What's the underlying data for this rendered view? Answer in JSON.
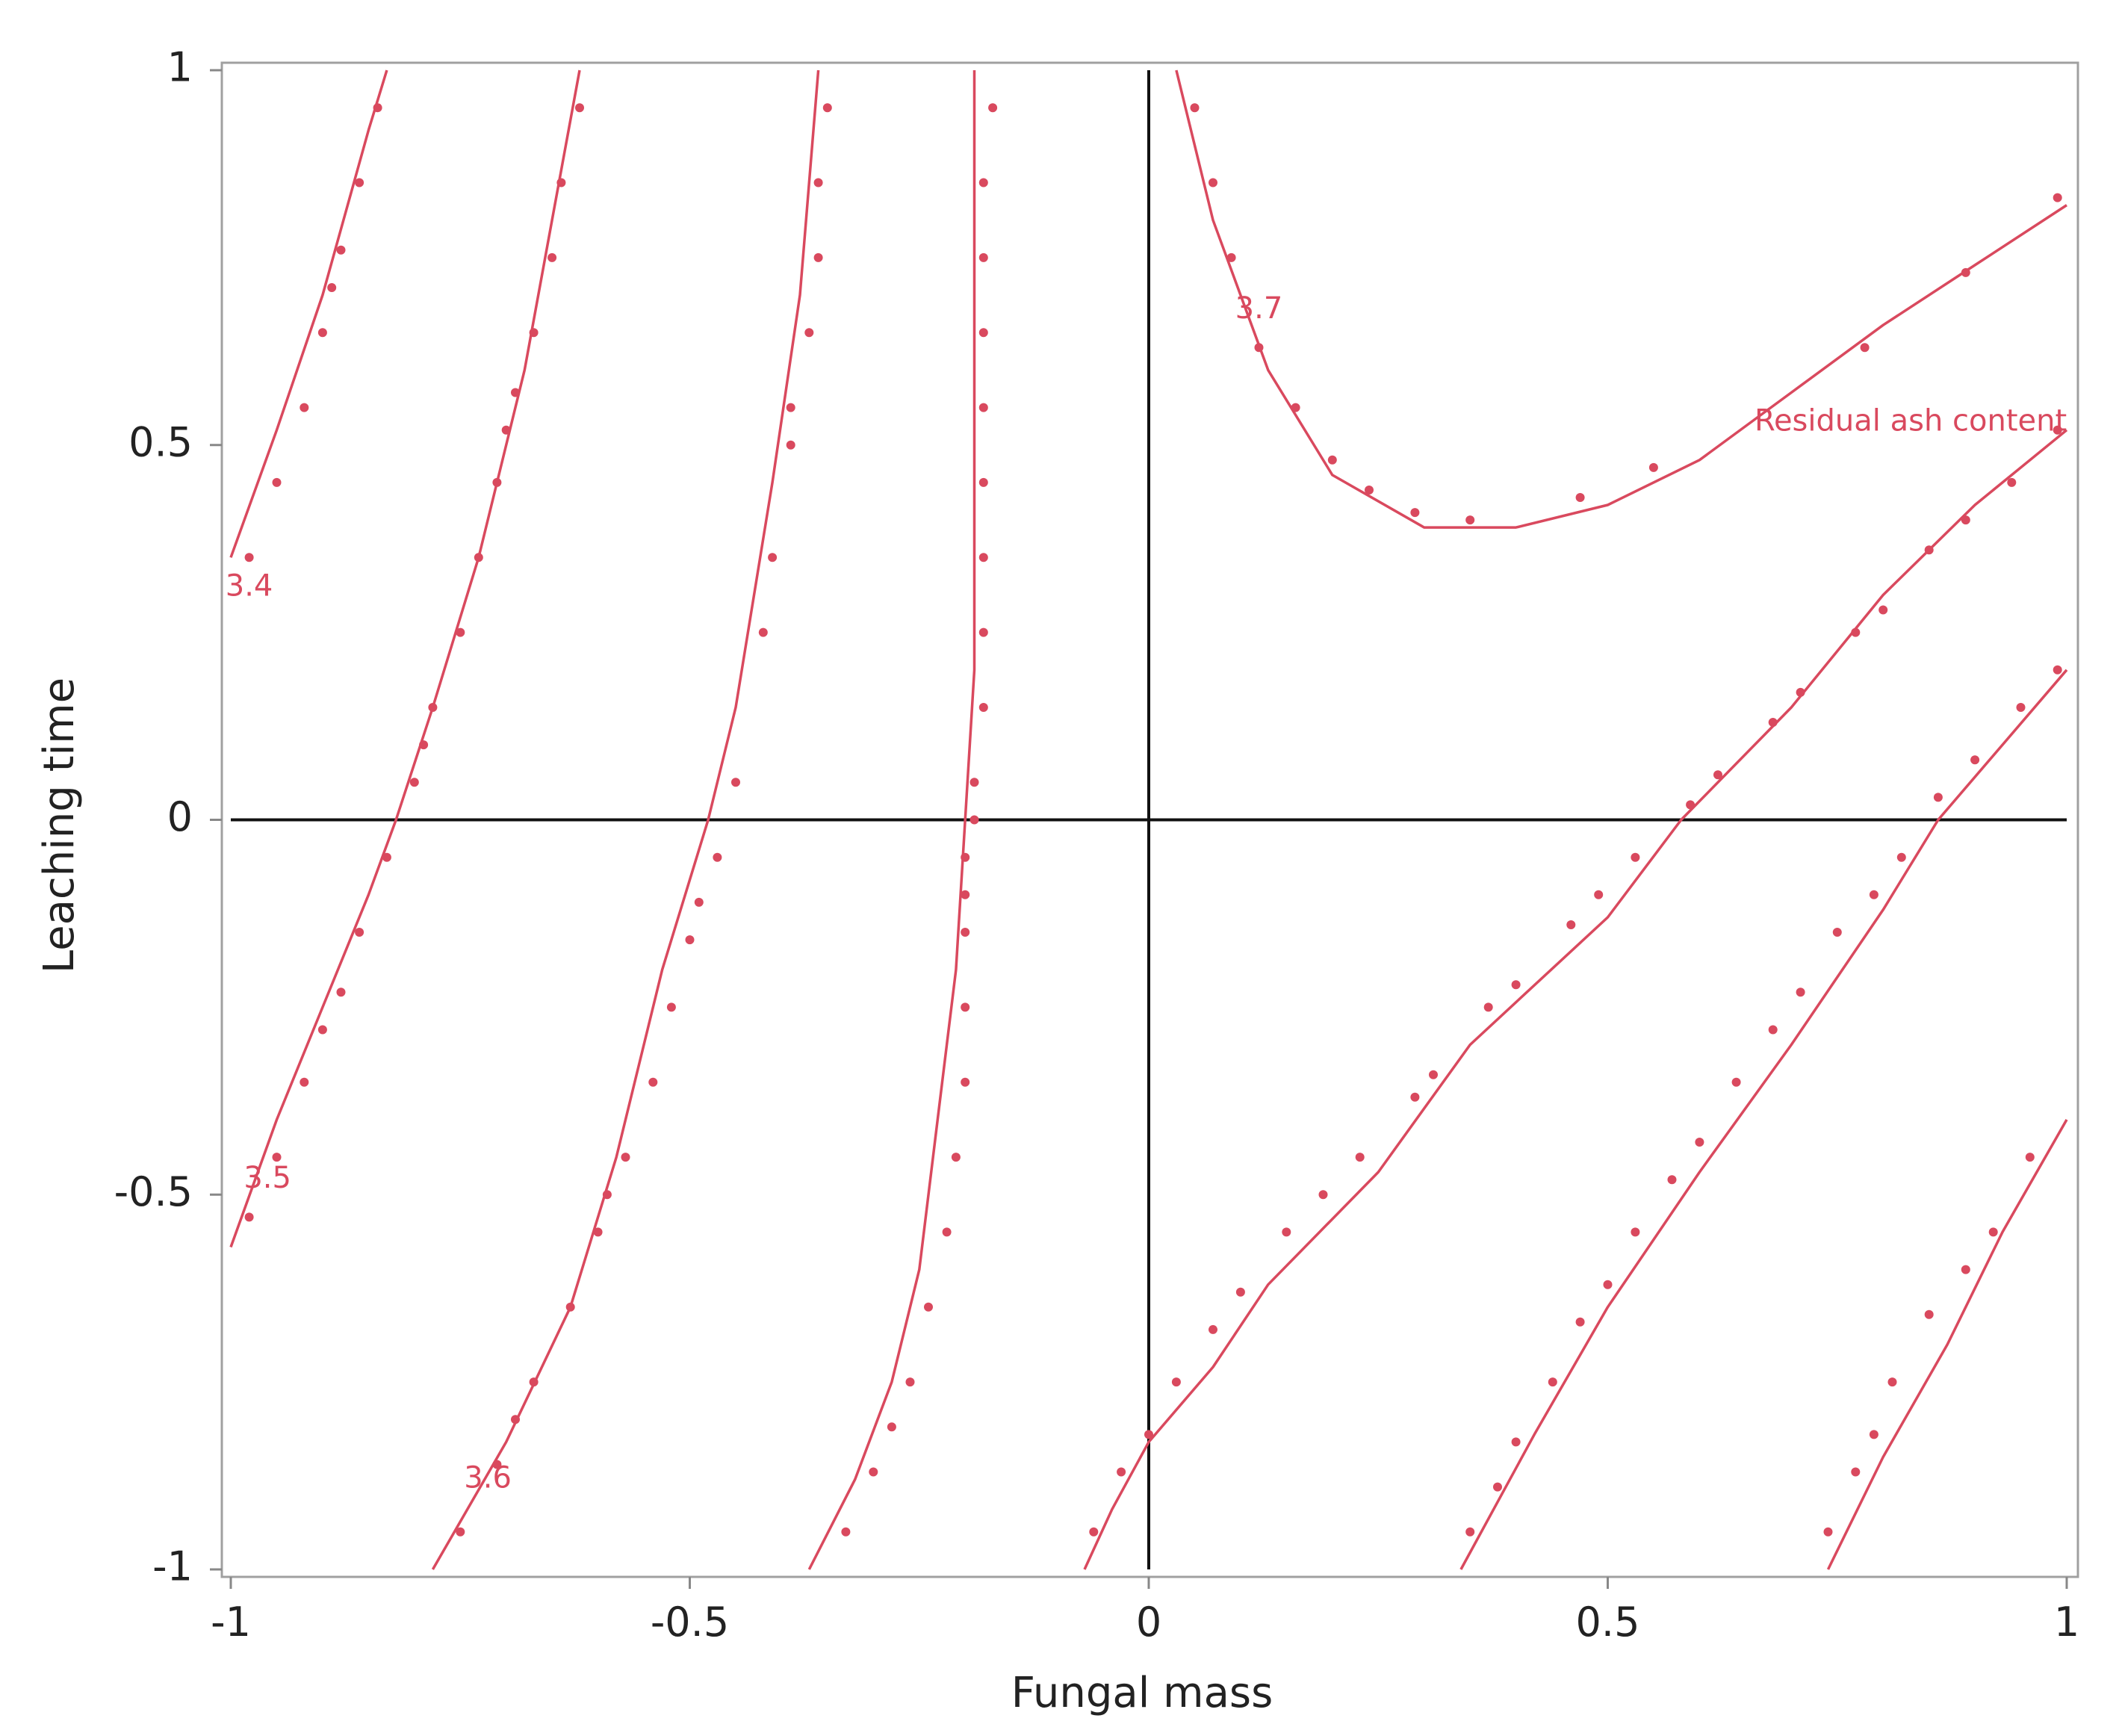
{
  "chart_data": {
    "type": "contour",
    "title": "",
    "xlabel": "Fungal mass",
    "ylabel": "Leaching time",
    "xlim": [
      -1,
      1
    ],
    "ylim": [
      -1,
      1
    ],
    "xticks": [
      "-1",
      "-0.5",
      "0",
      "0.5",
      "1"
    ],
    "yticks": [
      "-1",
      "-0.5",
      "0",
      "0.5",
      "1"
    ],
    "series_label": "Residual ash content",
    "color": "#d9495e",
    "reference_lines": [
      {
        "axis": "x",
        "value": 0
      },
      {
        "axis": "y",
        "value": 0
      }
    ],
    "contour_labels": [
      {
        "text": "3.4",
        "x": -0.98,
        "y": 0.31
      },
      {
        "text": "3.5",
        "x": -0.96,
        "y": -0.48
      },
      {
        "text": "3.6",
        "x": -0.72,
        "y": -0.88
      },
      {
        "text": "3.7",
        "x": 0.12,
        "y": 0.68
      },
      {
        "text": "Residual ash content",
        "x": 0.83,
        "y": 0.53
      }
    ],
    "contours": [
      {
        "line": [
          [
            -1.0,
            0.35
          ],
          [
            -0.95,
            0.52
          ],
          [
            -0.9,
            0.7
          ],
          [
            -0.85,
            0.92
          ],
          [
            -0.83,
            1.0
          ]
        ],
        "points": [
          [
            -0.98,
            0.35
          ],
          [
            -0.95,
            0.45
          ],
          [
            -0.92,
            0.55
          ],
          [
            -0.9,
            0.65
          ],
          [
            -0.89,
            0.71
          ],
          [
            -0.88,
            0.76
          ],
          [
            -0.86,
            0.85
          ],
          [
            -0.84,
            0.95
          ]
        ]
      },
      {
        "line": [
          [
            -1.0,
            -0.57
          ],
          [
            -0.95,
            -0.4
          ],
          [
            -0.9,
            -0.25
          ],
          [
            -0.85,
            -0.1
          ],
          [
            -0.82,
            0.0
          ],
          [
            -0.78,
            0.15
          ],
          [
            -0.73,
            0.35
          ],
          [
            -0.68,
            0.6
          ],
          [
            -0.65,
            0.8
          ],
          [
            -0.62,
            1.0
          ]
        ],
        "points": [
          [
            -0.98,
            -0.53
          ],
          [
            -0.95,
            -0.45
          ],
          [
            -0.92,
            -0.35
          ],
          [
            -0.9,
            -0.28
          ],
          [
            -0.88,
            -0.23
          ],
          [
            -0.86,
            -0.15
          ],
          [
            -0.83,
            -0.05
          ],
          [
            -0.8,
            0.05
          ],
          [
            -0.79,
            0.1
          ],
          [
            -0.78,
            0.15
          ],
          [
            -0.75,
            0.25
          ],
          [
            -0.73,
            0.35
          ],
          [
            -0.71,
            0.45
          ],
          [
            -0.7,
            0.52
          ],
          [
            -0.69,
            0.57
          ],
          [
            -0.67,
            0.65
          ],
          [
            -0.65,
            0.75
          ],
          [
            -0.64,
            0.85
          ],
          [
            -0.62,
            0.95
          ]
        ]
      },
      {
        "line": [
          [
            -0.78,
            -1.0
          ],
          [
            -0.7,
            -0.83
          ],
          [
            -0.63,
            -0.65
          ],
          [
            -0.58,
            -0.45
          ],
          [
            -0.53,
            -0.2
          ],
          [
            -0.48,
            0.0
          ],
          [
            -0.45,
            0.15
          ],
          [
            -0.41,
            0.45
          ],
          [
            -0.38,
            0.7
          ],
          [
            -0.36,
            1.0
          ]
        ],
        "points": [
          [
            -0.75,
            -0.95
          ],
          [
            -0.71,
            -0.86
          ],
          [
            -0.69,
            -0.8
          ],
          [
            -0.67,
            -0.75
          ],
          [
            -0.63,
            -0.65
          ],
          [
            -0.6,
            -0.55
          ],
          [
            -0.59,
            -0.5
          ],
          [
            -0.57,
            -0.45
          ],
          [
            -0.54,
            -0.35
          ],
          [
            -0.52,
            -0.25
          ],
          [
            -0.5,
            -0.16
          ],
          [
            -0.49,
            -0.11
          ],
          [
            -0.47,
            -0.05
          ],
          [
            -0.45,
            0.05
          ],
          [
            -0.42,
            0.25
          ],
          [
            -0.41,
            0.35
          ],
          [
            -0.39,
            0.5
          ],
          [
            -0.39,
            0.55
          ],
          [
            -0.37,
            0.65
          ],
          [
            -0.36,
            0.75
          ],
          [
            -0.36,
            0.85
          ],
          [
            -0.35,
            0.95
          ]
        ]
      },
      {
        "line": [
          [
            -0.37,
            -1.0
          ],
          [
            -0.32,
            -0.88
          ],
          [
            -0.28,
            -0.75
          ],
          [
            -0.25,
            -0.6
          ],
          [
            -0.23,
            -0.4
          ],
          [
            -0.21,
            -0.2
          ],
          [
            -0.2,
            0.0
          ],
          [
            -0.19,
            0.2
          ],
          [
            -0.19,
            0.5
          ],
          [
            -0.19,
            0.8
          ],
          [
            -0.19,
            1.0
          ]
        ],
        "points": [
          [
            -0.33,
            -0.95
          ],
          [
            -0.3,
            -0.87
          ],
          [
            -0.28,
            -0.81
          ],
          [
            -0.26,
            -0.75
          ],
          [
            -0.24,
            -0.65
          ],
          [
            -0.22,
            -0.55
          ],
          [
            -0.21,
            -0.45
          ],
          [
            -0.2,
            -0.35
          ],
          [
            -0.2,
            -0.25
          ],
          [
            -0.2,
            -0.15
          ],
          [
            -0.2,
            -0.1
          ],
          [
            -0.2,
            -0.05
          ],
          [
            -0.19,
            0.0
          ],
          [
            -0.19,
            0.05
          ],
          [
            -0.18,
            0.15
          ],
          [
            -0.18,
            0.25
          ],
          [
            -0.18,
            0.35
          ],
          [
            -0.18,
            0.45
          ],
          [
            -0.18,
            0.55
          ],
          [
            -0.18,
            0.65
          ],
          [
            -0.18,
            0.75
          ],
          [
            -0.18,
            0.85
          ],
          [
            -0.17,
            0.95
          ]
        ]
      },
      {
        "line": [
          [
            0.03,
            1.0
          ],
          [
            0.07,
            0.8
          ],
          [
            0.13,
            0.6
          ],
          [
            0.2,
            0.46
          ],
          [
            0.3,
            0.39
          ],
          [
            0.4,
            0.39
          ],
          [
            0.5,
            0.42
          ],
          [
            0.6,
            0.48
          ],
          [
            0.7,
            0.57
          ],
          [
            0.8,
            0.66
          ],
          [
            0.9,
            0.74
          ],
          [
            1.0,
            0.82
          ]
        ],
        "points": [
          [
            0.05,
            0.95
          ],
          [
            0.07,
            0.85
          ],
          [
            0.09,
            0.75
          ],
          [
            0.12,
            0.63
          ],
          [
            0.16,
            0.55
          ],
          [
            0.2,
            0.48
          ],
          [
            0.24,
            0.44
          ],
          [
            0.29,
            0.41
          ],
          [
            0.35,
            0.4
          ],
          [
            0.47,
            0.43
          ],
          [
            0.55,
            0.47
          ],
          [
            0.78,
            0.63
          ],
          [
            0.89,
            0.73
          ],
          [
            0.99,
            0.83
          ]
        ]
      },
      {
        "line": [
          [
            -0.07,
            -1.0
          ],
          [
            -0.04,
            -0.92
          ],
          [
            0.0,
            -0.83
          ],
          [
            0.07,
            -0.73
          ],
          [
            0.13,
            -0.62
          ],
          [
            0.25,
            -0.47
          ],
          [
            0.35,
            -0.3
          ],
          [
            0.5,
            -0.13
          ],
          [
            0.58,
            0.0
          ],
          [
            0.7,
            0.15
          ],
          [
            0.8,
            0.3
          ],
          [
            0.9,
            0.42
          ],
          [
            1.0,
            0.52
          ]
        ],
        "points": [
          [
            -0.06,
            -0.95
          ],
          [
            -0.03,
            -0.87
          ],
          [
            0.0,
            -0.82
          ],
          [
            0.03,
            -0.75
          ],
          [
            0.07,
            -0.68
          ],
          [
            0.1,
            -0.63
          ],
          [
            0.15,
            -0.55
          ],
          [
            0.19,
            -0.5
          ],
          [
            0.23,
            -0.45
          ],
          [
            0.29,
            -0.37
          ],
          [
            0.31,
            -0.34
          ],
          [
            0.37,
            -0.25
          ],
          [
            0.4,
            -0.22
          ],
          [
            0.46,
            -0.14
          ],
          [
            0.49,
            -0.1
          ],
          [
            0.53,
            -0.05
          ],
          [
            0.59,
            0.02
          ],
          [
            0.62,
            0.06
          ],
          [
            0.68,
            0.13
          ],
          [
            0.71,
            0.17
          ],
          [
            0.77,
            0.25
          ],
          [
            0.8,
            0.28
          ],
          [
            0.85,
            0.36
          ],
          [
            0.89,
            0.4
          ],
          [
            0.94,
            0.45
          ],
          [
            0.99,
            0.52
          ]
        ]
      },
      {
        "line": [
          [
            0.34,
            -1.0
          ],
          [
            0.42,
            -0.82
          ],
          [
            0.5,
            -0.65
          ],
          [
            0.6,
            -0.47
          ],
          [
            0.7,
            -0.3
          ],
          [
            0.8,
            -0.12
          ],
          [
            0.86,
            0.0
          ],
          [
            0.93,
            0.1
          ],
          [
            1.0,
            0.2
          ]
        ],
        "points": [
          [
            0.35,
            -0.95
          ],
          [
            0.38,
            -0.89
          ],
          [
            0.4,
            -0.83
          ],
          [
            0.44,
            -0.75
          ],
          [
            0.47,
            -0.67
          ],
          [
            0.5,
            -0.62
          ],
          [
            0.53,
            -0.55
          ],
          [
            0.57,
            -0.48
          ],
          [
            0.6,
            -0.43
          ],
          [
            0.64,
            -0.35
          ],
          [
            0.68,
            -0.28
          ],
          [
            0.71,
            -0.23
          ],
          [
            0.75,
            -0.15
          ],
          [
            0.79,
            -0.1
          ],
          [
            0.82,
            -0.05
          ],
          [
            0.86,
            0.03
          ],
          [
            0.9,
            0.08
          ],
          [
            0.95,
            0.15
          ],
          [
            0.99,
            0.2
          ]
        ]
      },
      {
        "line": [
          [
            0.74,
            -1.0
          ],
          [
            0.8,
            -0.85
          ],
          [
            0.87,
            -0.7
          ],
          [
            0.93,
            -0.55
          ],
          [
            1.0,
            -0.4
          ]
        ],
        "points": [
          [
            0.74,
            -0.95
          ],
          [
            0.77,
            -0.87
          ],
          [
            0.79,
            -0.82
          ],
          [
            0.81,
            -0.75
          ],
          [
            0.85,
            -0.66
          ],
          [
            0.89,
            -0.6
          ],
          [
            0.92,
            -0.55
          ],
          [
            0.96,
            -0.45
          ]
        ]
      }
    ]
  }
}
